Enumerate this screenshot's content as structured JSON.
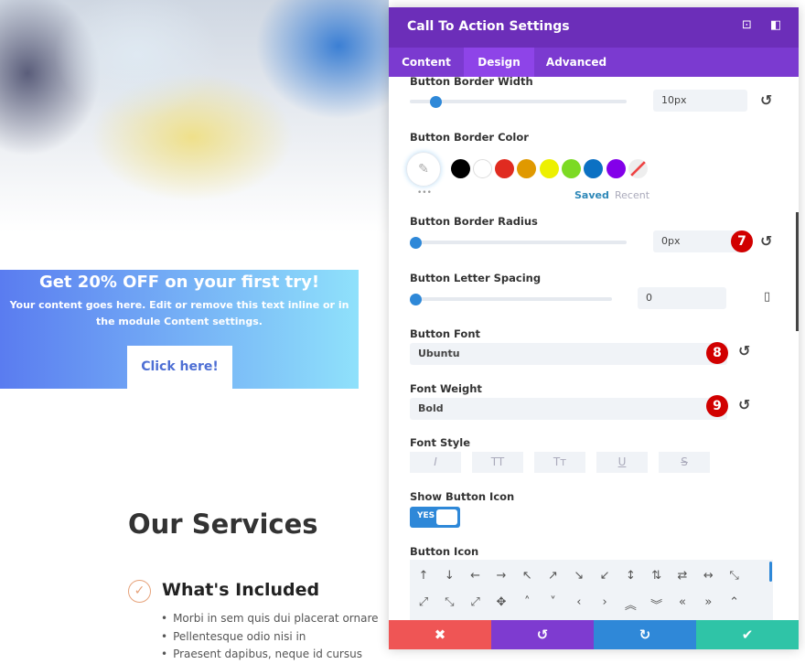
{
  "cta": {
    "title": "Get 20% OFF on your first try!",
    "body": "Your content goes here. Edit or remove this text inline or in the module Content settings.",
    "button": "Click here!"
  },
  "services": {
    "heading": "Our Services",
    "subheading": "What's Included",
    "bullets": [
      "Morbi in sem quis dui placerat ornare",
      "Pellentesque odio nisi  in",
      "Praesent dapibus, neque id cursus"
    ]
  },
  "panel": {
    "title": "Call To Action Settings",
    "header_icons": [
      "focus-icon",
      "split-view-icon"
    ],
    "tabs": [
      {
        "label": "Content"
      },
      {
        "label": "Design",
        "active": true
      },
      {
        "label": "Advanced"
      }
    ],
    "border_width": {
      "label": "Button Border Width",
      "value": "10px",
      "slider": 0.1
    },
    "border_color": {
      "label": "Button Border Color",
      "swatches": [
        "#000000",
        "#ffffff",
        "#e02b20",
        "#e09900",
        "#edf000",
        "#7cda24",
        "#0c71c3",
        "#8300e9"
      ],
      "saved": "Saved",
      "recent": "Recent",
      "more": "•••"
    },
    "border_radius": {
      "label": "Button Border Radius",
      "value": "0px",
      "slider": 0,
      "badge": "7"
    },
    "letter_spacing": {
      "label": "Button Letter Spacing",
      "value": "0",
      "slider": 0
    },
    "font": {
      "label": "Button Font",
      "value": "Ubuntu",
      "badge": "8"
    },
    "weight": {
      "label": "Font Weight",
      "value": "Bold",
      "badge": "9"
    },
    "style": {
      "label": "Font Style",
      "options": [
        "I",
        "TT",
        "Tт",
        "U",
        "S"
      ]
    },
    "show_icon": {
      "label": "Show Button Icon",
      "value": "YES",
      "on": true
    },
    "button_icon": {
      "label": "Button Icon",
      "icons": [
        "↑",
        "↓",
        "←",
        "→",
        "↖",
        "↗",
        "↘",
        "↙",
        "↕",
        "⇅",
        "⇄",
        "↔",
        "⤡",
        "⤢",
        "⤡",
        "⤢",
        "✥",
        "˄",
        "˅",
        "‹",
        "›",
        "︽",
        "︾",
        "«",
        "»",
        "⌃"
      ]
    },
    "footer": {
      "cancel": "✖",
      "undo": "↺",
      "redo": "↻",
      "save": "✔"
    },
    "colors": {
      "header": "#6c2eb9",
      "tabs": "#7b3ad0",
      "accent": "#2e88d8"
    }
  }
}
